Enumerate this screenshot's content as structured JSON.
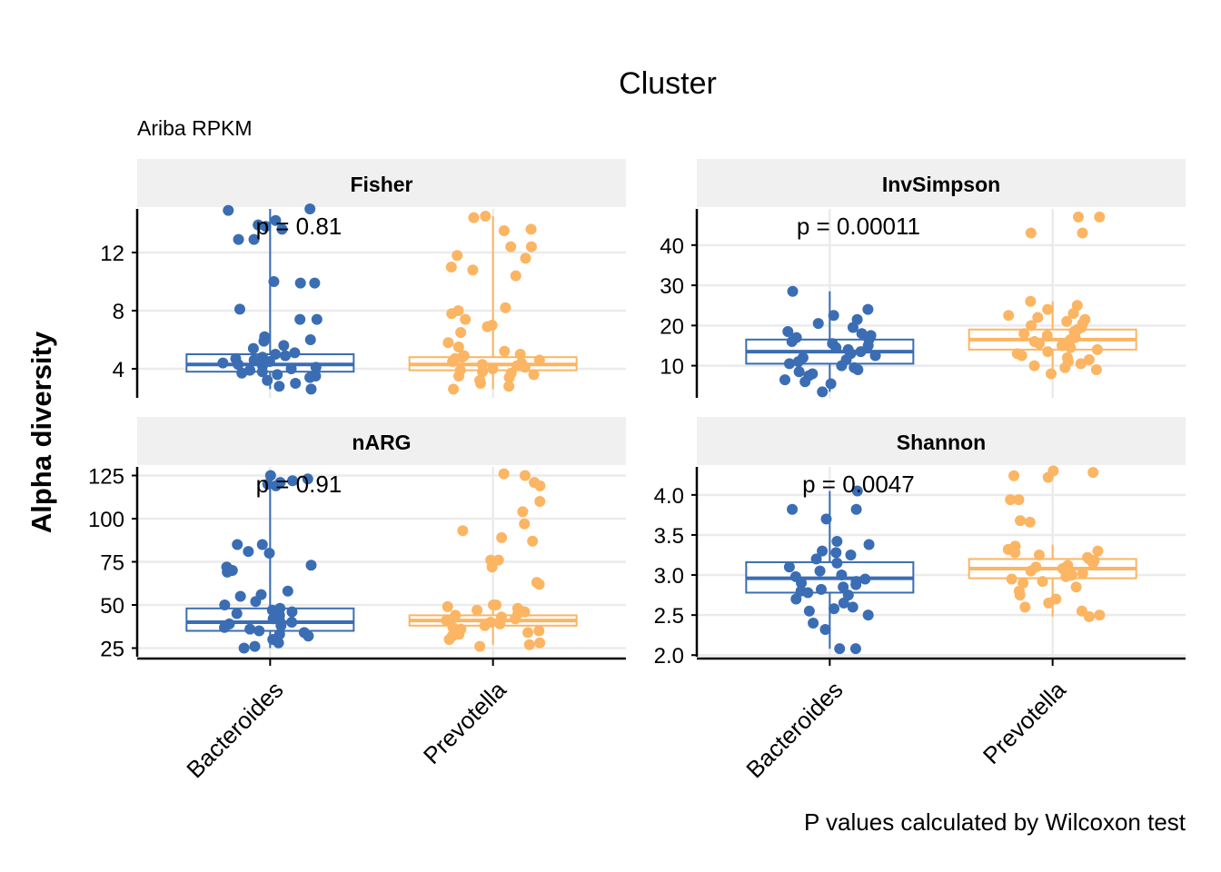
{
  "title": "Cluster",
  "subtitle": "Ariba RPKM",
  "ylabel": "Alpha diversity",
  "caption": "P values calculated by Wilcoxon test",
  "colors": {
    "Bacteroides": "#3a6db3",
    "Prevotella": "#fbb563"
  },
  "chart_data": {
    "type": "box",
    "categories": [
      "Bacteroides",
      "Prevotella"
    ],
    "facets": [
      {
        "name": "Fisher",
        "pvalue": "p = 0.81",
        "ylim": [
          2.0,
          15.0
        ],
        "yticks": [
          4,
          8,
          12
        ],
        "groups": [
          {
            "category": "Bacteroides",
            "q1": 3.8,
            "median": 4.3,
            "q3": 5.0,
            "whisker_low": 2.6,
            "whisker_high": 15.0,
            "points": [
              15.0,
              14.9,
              14.2,
              13.9,
              13.8,
              13.6,
              12.9,
              12.9,
              10.0,
              9.9,
              9.9,
              8.1,
              7.4,
              7.4,
              6.2,
              6.0,
              5.9,
              5.6,
              5.4,
              5.1,
              5.0,
              4.9,
              4.8,
              4.7,
              4.6,
              4.5,
              4.4,
              4.3,
              4.2,
              4.1,
              4.0,
              3.9,
              3.8,
              3.7,
              3.6,
              3.5,
              3.4,
              3.2,
              3.0,
              2.8,
              2.6
            ]
          },
          {
            "category": "Prevotella",
            "q1": 3.9,
            "median": 4.3,
            "q3": 4.8,
            "whisker_low": 2.6,
            "whisker_high": 14.5,
            "points": [
              14.5,
              14.4,
              13.6,
              13.5,
              12.4,
              12.4,
              11.8,
              11.6,
              11.0,
              10.8,
              10.4,
              8.2,
              8.0,
              7.8,
              7.4,
              7.0,
              6.9,
              6.5,
              5.8,
              5.5,
              5.2,
              5.0,
              4.9,
              4.8,
              4.7,
              4.6,
              4.5,
              4.4,
              4.3,
              4.2,
              4.1,
              4.0,
              3.9,
              3.8,
              3.7,
              3.6,
              3.5,
              3.4,
              3.2,
              3.0,
              2.8,
              2.6
            ]
          }
        ]
      },
      {
        "name": "InvSimpson",
        "pvalue": "p = 0.00011",
        "ylim": [
          2.0,
          49.0
        ],
        "yticks": [
          10,
          20,
          30,
          40
        ],
        "groups": [
          {
            "category": "Bacteroides",
            "q1": 10.5,
            "median": 13.5,
            "q3": 16.5,
            "whisker_low": 3.5,
            "whisker_high": 28.5,
            "points": [
              28.5,
              24.0,
              22.5,
              21.5,
              20.5,
              19.5,
              18.5,
              18.0,
              17.5,
              17.0,
              16.5,
              16.0,
              15.5,
              15.0,
              14.5,
              14.0,
              13.5,
              13.0,
              12.5,
              12.0,
              11.5,
              11.0,
              10.5,
              10.0,
              9.5,
              9.0,
              8.5,
              8.0,
              7.5,
              6.5,
              6.0,
              5.5,
              3.5
            ]
          },
          {
            "category": "Prevotella",
            "q1": 14.0,
            "median": 16.5,
            "q3": 19.0,
            "whisker_low": 8.0,
            "whisker_high": 26.0,
            "points": [
              47.0,
              47.0,
              43.0,
              43.0,
              26.0,
              25.0,
              24.0,
              23.0,
              22.5,
              22.0,
              21.5,
              21.0,
              20.5,
              20.0,
              19.5,
              19.0,
              18.5,
              18.0,
              17.5,
              17.0,
              16.5,
              16.0,
              15.5,
              15.0,
              14.5,
              14.0,
              13.5,
              13.0,
              12.5,
              12.0,
              11.5,
              11.0,
              10.5,
              10.0,
              9.5,
              9.0,
              8.0
            ]
          }
        ]
      },
      {
        "name": "nARG",
        "pvalue": "p = 0.91",
        "ylim": [
          20,
          130
        ],
        "yticks": [
          25,
          50,
          75,
          100,
          125
        ],
        "groups": [
          {
            "category": "Bacteroides",
            "q1": 35,
            "median": 40,
            "q3": 48,
            "whisker_low": 25,
            "whisker_high": 125,
            "points": [
              125,
              123,
              122,
              121,
              120,
              119,
              85,
              85,
              81,
              80,
              73,
              72,
              70,
              69,
              58,
              56,
              55,
              52,
              50,
              48,
              47,
              46,
              45,
              44,
              43,
              42,
              41,
              40,
              39,
              38,
              37,
              36,
              35,
              34,
              33,
              32,
              30,
              28,
              26,
              25
            ]
          },
          {
            "category": "Prevotella",
            "q1": 38,
            "median": 41,
            "q3": 44,
            "whisker_low": 27,
            "whisker_high": 50,
            "points": [
              126,
              125,
              121,
              119,
              110,
              104,
              97,
              93,
              89,
              87,
              76,
              76,
              72,
              63,
              62,
              50,
              50,
              49,
              48,
              47,
              46,
              45,
              44,
              43,
              42,
              41,
              40,
              39,
              38,
              37,
              36,
              35,
              34,
              33,
              32,
              30,
              28,
              27,
              26
            ]
          }
        ]
      },
      {
        "name": "Shannon",
        "pvalue": "p = 0.0047",
        "ylim": [
          1.98,
          4.35
        ],
        "yticks": [
          2.0,
          2.5,
          3.0,
          3.5,
          4.0
        ],
        "groups": [
          {
            "category": "Bacteroides",
            "q1": 2.78,
            "median": 2.96,
            "q3": 3.16,
            "whisker_low": 2.08,
            "whisker_high": 4.05,
            "points": [
              4.05,
              3.82,
              3.82,
              3.7,
              3.42,
              3.38,
              3.3,
              3.28,
              3.25,
              3.2,
              3.15,
              3.1,
              3.05,
              3.0,
              2.98,
              2.95,
              2.92,
              2.9,
              2.88,
              2.85,
              2.82,
              2.8,
              2.78,
              2.75,
              2.7,
              2.65,
              2.6,
              2.58,
              2.55,
              2.5,
              2.4,
              2.32,
              2.08,
              2.08
            ]
          },
          {
            "category": "Prevotella",
            "q1": 2.96,
            "median": 3.08,
            "q3": 3.2,
            "whisker_low": 2.48,
            "whisker_high": 3.38,
            "points": [
              4.3,
              4.28,
              4.24,
              4.22,
              3.94,
              3.94,
              3.68,
              3.66,
              3.36,
              3.32,
              3.3,
              3.28,
              3.25,
              3.22,
              3.2,
              3.18,
              3.15,
              3.12,
              3.1,
              3.08,
              3.05,
              3.02,
              3.0,
              2.98,
              2.95,
              2.92,
              2.9,
              2.85,
              2.8,
              2.75,
              2.7,
              2.65,
              2.6,
              2.55,
              2.5,
              2.48
            ]
          }
        ]
      }
    ]
  }
}
